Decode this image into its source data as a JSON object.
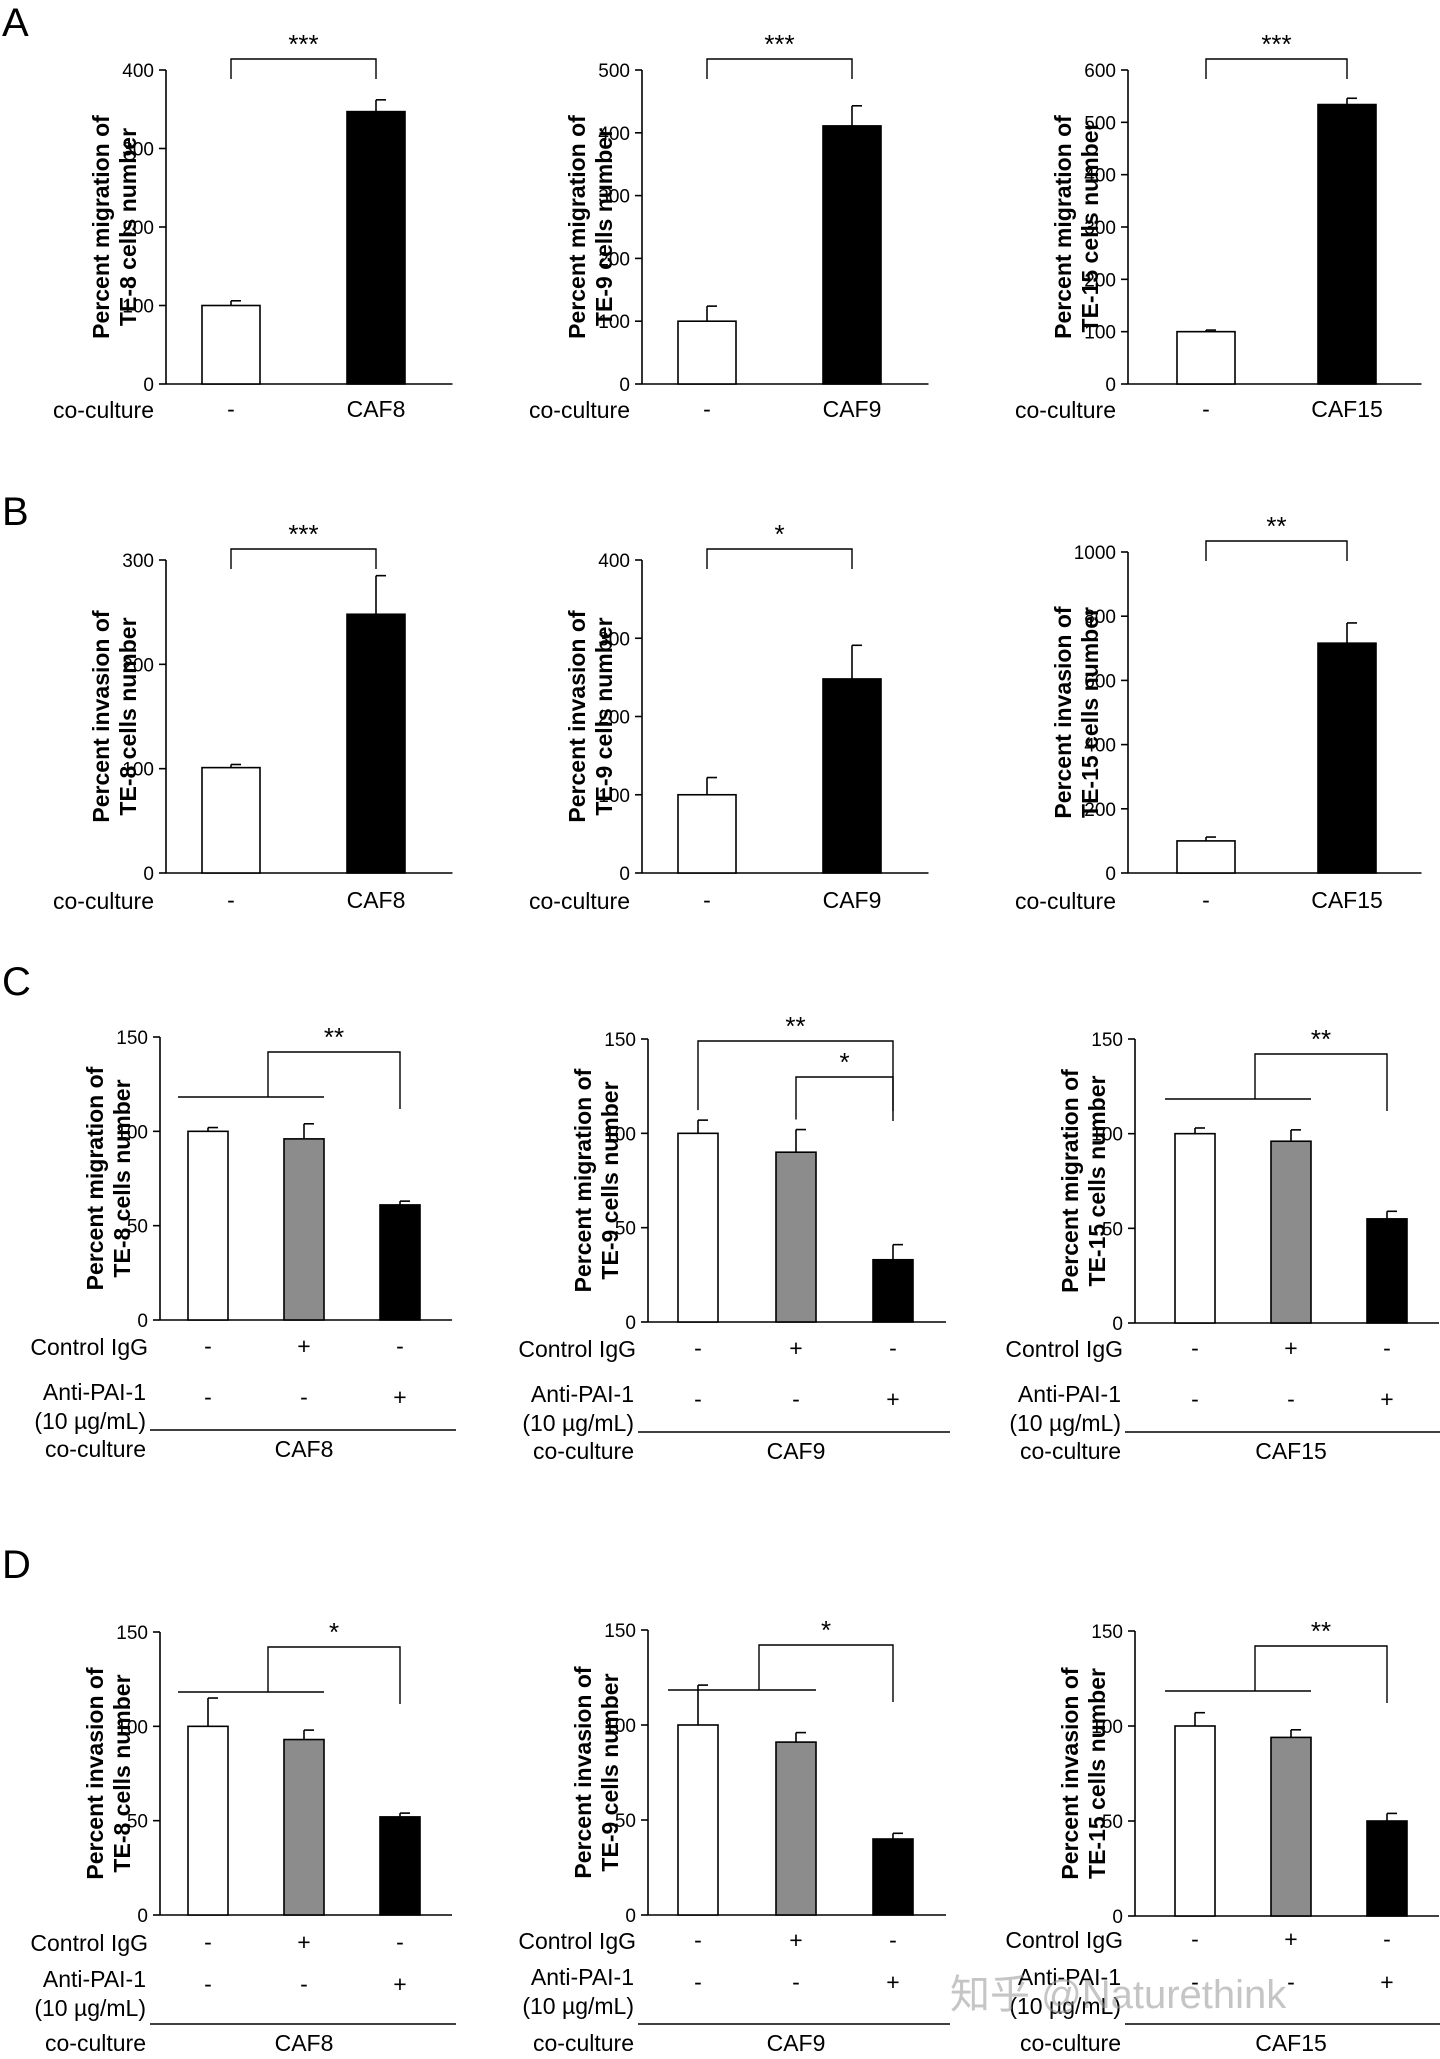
{
  "panel_letters": [
    "A",
    "B",
    "C",
    "D"
  ],
  "watermark": "知乎 @Naturethink",
  "chart_data": [
    {
      "id": "A1",
      "type": "bar",
      "panel": "A",
      "ylabel": [
        "Percent migration of",
        "TE-8 cells number"
      ],
      "ylim": [
        0,
        400
      ],
      "yticks": [
        0,
        100,
        200,
        300,
        400
      ],
      "rows": [
        {
          "label": "co-culture",
          "values": [
            "-",
            "CAF8"
          ]
        }
      ],
      "bars": [
        {
          "value": 100,
          "error": 6,
          "fill": "#ffffff"
        },
        {
          "value": 347,
          "error": 15,
          "fill": "#000000"
        }
      ],
      "significance": [
        {
          "from": 0,
          "to": 1,
          "stars": "***"
        }
      ]
    },
    {
      "id": "A2",
      "type": "bar",
      "panel": "A",
      "ylabel": [
        "Percent migration of",
        "TE-9 cells number"
      ],
      "ylim": [
        0,
        500
      ],
      "yticks": [
        0,
        100,
        200,
        300,
        400,
        500
      ],
      "rows": [
        {
          "label": "co-culture",
          "values": [
            "-",
            "CAF9"
          ]
        }
      ],
      "bars": [
        {
          "value": 100,
          "error": 24,
          "fill": "#ffffff"
        },
        {
          "value": 411,
          "error": 32,
          "fill": "#000000"
        }
      ],
      "significance": [
        {
          "from": 0,
          "to": 1,
          "stars": "***"
        }
      ]
    },
    {
      "id": "A3",
      "type": "bar",
      "panel": "A",
      "ylabel": [
        "Percent migration of",
        "TE-15 cells number"
      ],
      "ylim": [
        0,
        600
      ],
      "yticks": [
        0,
        100,
        200,
        300,
        400,
        500,
        600
      ],
      "rows": [
        {
          "label": "co-culture",
          "values": [
            "-",
            "CAF15"
          ]
        }
      ],
      "bars": [
        {
          "value": 100,
          "error": 3,
          "fill": "#ffffff"
        },
        {
          "value": 534,
          "error": 12,
          "fill": "#000000"
        }
      ],
      "significance": [
        {
          "from": 0,
          "to": 1,
          "stars": "***"
        }
      ]
    },
    {
      "id": "B1",
      "type": "bar",
      "panel": "B",
      "ylabel": [
        "Percent invasion of",
        "TE-8 cells number"
      ],
      "ylim": [
        0,
        300
      ],
      "yticks": [
        0,
        100,
        200,
        300
      ],
      "rows": [
        {
          "label": "co-culture",
          "values": [
            "-",
            "CAF8"
          ]
        }
      ],
      "bars": [
        {
          "value": 101,
          "error": 3,
          "fill": "#ffffff"
        },
        {
          "value": 248,
          "error": 37,
          "fill": "#000000"
        }
      ],
      "significance": [
        {
          "from": 0,
          "to": 1,
          "stars": "***"
        }
      ]
    },
    {
      "id": "B2",
      "type": "bar",
      "panel": "B",
      "ylabel": [
        "Percent invasion of",
        "TE-9 cells number"
      ],
      "ylim": [
        0,
        400
      ],
      "yticks": [
        0,
        100,
        200,
        300,
        400
      ],
      "rows": [
        {
          "label": "co-culture",
          "values": [
            "-",
            "CAF9"
          ]
        }
      ],
      "bars": [
        {
          "value": 100,
          "error": 22,
          "fill": "#ffffff"
        },
        {
          "value": 248,
          "error": 43,
          "fill": "#000000"
        }
      ],
      "significance": [
        {
          "from": 0,
          "to": 1,
          "stars": "*"
        }
      ]
    },
    {
      "id": "B3",
      "type": "bar",
      "panel": "B",
      "ylabel": [
        "Percent invasion of",
        "TE-15 cells number"
      ],
      "ylim": [
        0,
        1000
      ],
      "yticks": [
        0,
        200,
        400,
        600,
        800,
        1000
      ],
      "rows": [
        {
          "label": "co-culture",
          "values": [
            "-",
            "CAF15"
          ]
        }
      ],
      "bars": [
        {
          "value": 100,
          "error": 12,
          "fill": "#ffffff"
        },
        {
          "value": 716,
          "error": 63,
          "fill": "#000000"
        }
      ],
      "significance": [
        {
          "from": 0,
          "to": 1,
          "stars": "**"
        }
      ]
    },
    {
      "id": "C1",
      "type": "bar",
      "panel": "C",
      "ylabel": [
        "Percent migration of",
        "TE-8 cells number"
      ],
      "ylim": [
        0,
        150
      ],
      "yticks": [
        0,
        50,
        100,
        150
      ],
      "rows": [
        {
          "label": "Control IgG",
          "values": [
            "-",
            "+",
            "-"
          ]
        },
        {
          "label": "Anti-PAI-1",
          "label2": "(10 µg/mL)",
          "values": [
            "-",
            "-",
            "+"
          ]
        }
      ],
      "coculture": {
        "label": "co-culture",
        "value": "CAF8"
      },
      "bars": [
        {
          "value": 100,
          "error": 2,
          "fill": "#ffffff"
        },
        {
          "value": 96,
          "error": 8,
          "fill": "#8c8c8c"
        },
        {
          "value": 61,
          "error": 2,
          "fill": "#000000"
        }
      ],
      "significance": [
        {
          "from": [
            0,
            1
          ],
          "to": 2,
          "stars": "**"
        }
      ]
    },
    {
      "id": "C2",
      "type": "bar",
      "panel": "C",
      "ylabel": [
        "Percent migration of",
        "TE-9 cells number"
      ],
      "ylim": [
        0,
        150
      ],
      "yticks": [
        0,
        50,
        100,
        150
      ],
      "rows": [
        {
          "label": "Control IgG",
          "values": [
            "-",
            "+",
            "-"
          ]
        },
        {
          "label": "Anti-PAI-1",
          "label2": "(10 µg/mL)",
          "values": [
            "-",
            "-",
            "+"
          ]
        }
      ],
      "coculture": {
        "label": "co-culture",
        "value": "CAF9"
      },
      "bars": [
        {
          "value": 100,
          "error": 7,
          "fill": "#ffffff"
        },
        {
          "value": 90,
          "error": 12,
          "fill": "#8c8c8c"
        },
        {
          "value": 33,
          "error": 8,
          "fill": "#000000"
        }
      ],
      "significance": [
        {
          "from": 0,
          "to": 2,
          "stars": "**"
        },
        {
          "from": 1,
          "to": 2,
          "stars": "*"
        }
      ]
    },
    {
      "id": "C3",
      "type": "bar",
      "panel": "C",
      "ylabel": [
        "Percent migration of",
        "TE-15 cells number"
      ],
      "ylim": [
        0,
        150
      ],
      "yticks": [
        0,
        50,
        100,
        150
      ],
      "rows": [
        {
          "label": "Control IgG",
          "values": [
            "-",
            "+",
            "-"
          ]
        },
        {
          "label": "Anti-PAI-1",
          "label2": "(10 µg/mL)",
          "values": [
            "-",
            "-",
            "+"
          ]
        }
      ],
      "coculture": {
        "label": "co-culture",
        "value": "CAF15"
      },
      "bars": [
        {
          "value": 100,
          "error": 3,
          "fill": "#ffffff"
        },
        {
          "value": 96,
          "error": 6,
          "fill": "#8c8c8c"
        },
        {
          "value": 55,
          "error": 4,
          "fill": "#000000"
        }
      ],
      "significance": [
        {
          "from": [
            0,
            1
          ],
          "to": 2,
          "stars": "**"
        }
      ]
    },
    {
      "id": "D1",
      "type": "bar",
      "panel": "D",
      "ylabel": [
        "Percent invasion of",
        "TE-8 cells number"
      ],
      "ylim": [
        0,
        150
      ],
      "yticks": [
        0,
        50,
        100,
        150
      ],
      "rows": [
        {
          "label": "Control IgG",
          "values": [
            "-",
            "+",
            "-"
          ]
        },
        {
          "label": "Anti-PAI-1",
          "label2": "(10 µg/mL)",
          "values": [
            "-",
            "-",
            "+"
          ]
        }
      ],
      "coculture": {
        "label": "co-culture",
        "value": "CAF8"
      },
      "bars": [
        {
          "value": 100,
          "error": 15,
          "fill": "#ffffff"
        },
        {
          "value": 93,
          "error": 5,
          "fill": "#8c8c8c"
        },
        {
          "value": 52,
          "error": 2,
          "fill": "#000000"
        }
      ],
      "significance": [
        {
          "from": [
            0,
            1
          ],
          "to": 2,
          "stars": "*"
        }
      ]
    },
    {
      "id": "D2",
      "type": "bar",
      "panel": "D",
      "ylabel": [
        "Percent invasion of",
        "TE-9 cells number"
      ],
      "ylim": [
        0,
        150
      ],
      "yticks": [
        0,
        50,
        100,
        150
      ],
      "rows": [
        {
          "label": "Control IgG",
          "values": [
            "-",
            "+",
            "-"
          ]
        },
        {
          "label": "Anti-PAI-1",
          "label2": "(10 µg/mL)",
          "values": [
            "-",
            "-",
            "+"
          ]
        }
      ],
      "coculture": {
        "label": "co-culture",
        "value": "CAF9"
      },
      "bars": [
        {
          "value": 100,
          "error": 21,
          "fill": "#ffffff"
        },
        {
          "value": 91,
          "error": 5,
          "fill": "#8c8c8c"
        },
        {
          "value": 40,
          "error": 3,
          "fill": "#000000"
        }
      ],
      "significance": [
        {
          "from": [
            0,
            1
          ],
          "to": 2,
          "stars": "*"
        }
      ]
    },
    {
      "id": "D3",
      "type": "bar",
      "panel": "D",
      "ylabel": [
        "Percent invasion of",
        "TE-15 cells number"
      ],
      "ylim": [
        0,
        150
      ],
      "yticks": [
        0,
        50,
        100,
        150
      ],
      "rows": [
        {
          "label": "Control IgG",
          "values": [
            "-",
            "+",
            "-"
          ]
        },
        {
          "label": "Anti-PAI-1",
          "label2": "(10 µg/mL)",
          "values": [
            "-",
            "-",
            "+"
          ]
        }
      ],
      "coculture": {
        "label": "co-culture",
        "value": "CAF15"
      },
      "bars": [
        {
          "value": 100,
          "error": 7,
          "fill": "#ffffff"
        },
        {
          "value": 94,
          "error": 4,
          "fill": "#8c8c8c"
        },
        {
          "value": 50,
          "error": 4,
          "fill": "#000000"
        }
      ],
      "significance": [
        {
          "from": [
            0,
            1
          ],
          "to": 2,
          "stars": "**"
        }
      ]
    }
  ]
}
